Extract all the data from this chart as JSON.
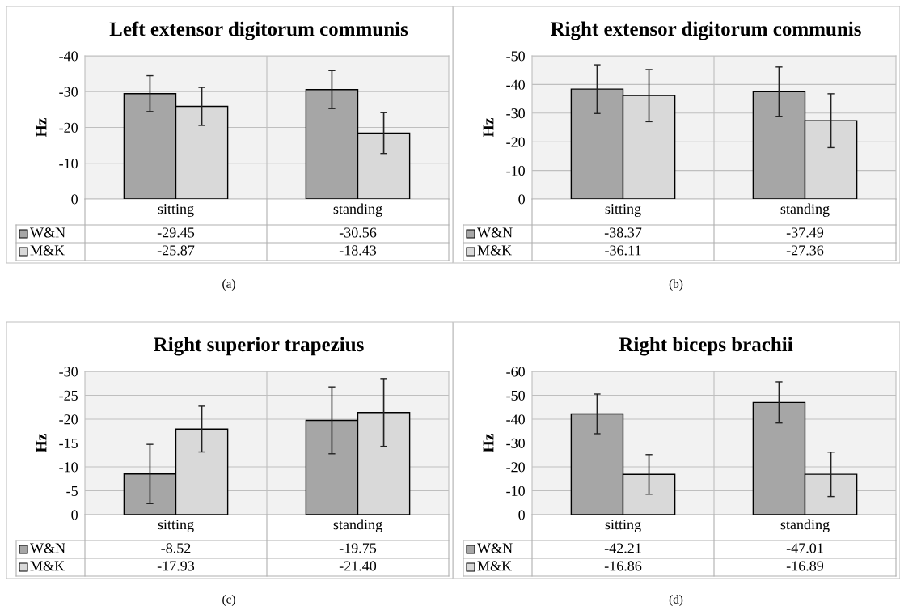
{
  "chart_data": [
    {
      "type": "bar",
      "title": "Left extensor digitorum communis",
      "ylabel": "Hz",
      "categories": [
        "sitting",
        "standing"
      ],
      "ylim": [
        0,
        -40
      ],
      "legend": "bottom left",
      "yticks": [
        0,
        -10,
        -20,
        -30,
        -40
      ],
      "grid": "y",
      "annotations": [
        "(a)"
      ],
      "series": [
        {
          "name": "W&N",
          "color": "#a6a6a6",
          "values": [
            -29.45,
            -30.56
          ],
          "errors": [
            5.0,
            5.3
          ],
          "value_labels": [
            "-29.45",
            "-30.56"
          ]
        },
        {
          "name": "M&K",
          "color": "#d9d9d9",
          "values": [
            -25.87,
            -18.43
          ],
          "errors": [
            5.3,
            5.7
          ],
          "value_labels": [
            "-25.87",
            "-18.43"
          ]
        }
      ]
    },
    {
      "type": "bar",
      "title": "Right extensor digitorum communis",
      "ylabel": "Hz",
      "categories": [
        "sitting",
        "standing"
      ],
      "ylim": [
        0,
        -50
      ],
      "legend": "bottom left",
      "yticks": [
        0,
        -10,
        -20,
        -30,
        -40,
        -50
      ],
      "grid": "y",
      "annotations": [
        "(b)"
      ],
      "series": [
        {
          "name": "W&N",
          "color": "#a6a6a6",
          "values": [
            -38.37,
            -37.49
          ],
          "errors": [
            8.5,
            8.6
          ],
          "value_labels": [
            "-38.37",
            "-37.49"
          ]
        },
        {
          "name": "M&K",
          "color": "#d9d9d9",
          "values": [
            -36.11,
            -27.36
          ],
          "errors": [
            9.1,
            9.4
          ],
          "value_labels": [
            "-36.11",
            "-27.36"
          ]
        }
      ]
    },
    {
      "type": "bar",
      "title": "Right superior trapezius",
      "ylabel": "Hz",
      "categories": [
        "sitting",
        "standing"
      ],
      "ylim": [
        0,
        -30
      ],
      "legend": "bottom left",
      "yticks": [
        0,
        -5,
        -10,
        -15,
        -20,
        -25,
        -30
      ],
      "grid": "y",
      "annotations": [
        "(c)"
      ],
      "series": [
        {
          "name": "W&N",
          "color": "#a6a6a6",
          "values": [
            -8.52,
            -19.75
          ],
          "errors": [
            6.2,
            7.0
          ],
          "value_labels": [
            "-8.52",
            "-19.75"
          ]
        },
        {
          "name": "M&K",
          "color": "#d9d9d9",
          "values": [
            -17.93,
            -21.4
          ],
          "errors": [
            4.8,
            7.1
          ],
          "value_labels": [
            "-17.93",
            "-21.40"
          ]
        }
      ]
    },
    {
      "type": "bar",
      "title": "Right biceps brachii",
      "ylabel": "Hz",
      "categories": [
        "sitting",
        "standing"
      ],
      "ylim": [
        0,
        -60
      ],
      "legend": "bottom left",
      "yticks": [
        0,
        -10,
        -20,
        -30,
        -40,
        -50,
        -60
      ],
      "grid": "y",
      "annotations": [
        "(d)"
      ],
      "series": [
        {
          "name": "W&N",
          "color": "#a6a6a6",
          "values": [
            -42.21,
            -47.01
          ],
          "errors": [
            8.3,
            8.6
          ],
          "value_labels": [
            "-42.21",
            "-47.01"
          ]
        },
        {
          "name": "M&K",
          "color": "#d9d9d9",
          "values": [
            -16.86,
            -16.89
          ],
          "errors": [
            8.3,
            9.3
          ],
          "value_labels": [
            "-16.86",
            "-16.89"
          ]
        }
      ]
    }
  ]
}
